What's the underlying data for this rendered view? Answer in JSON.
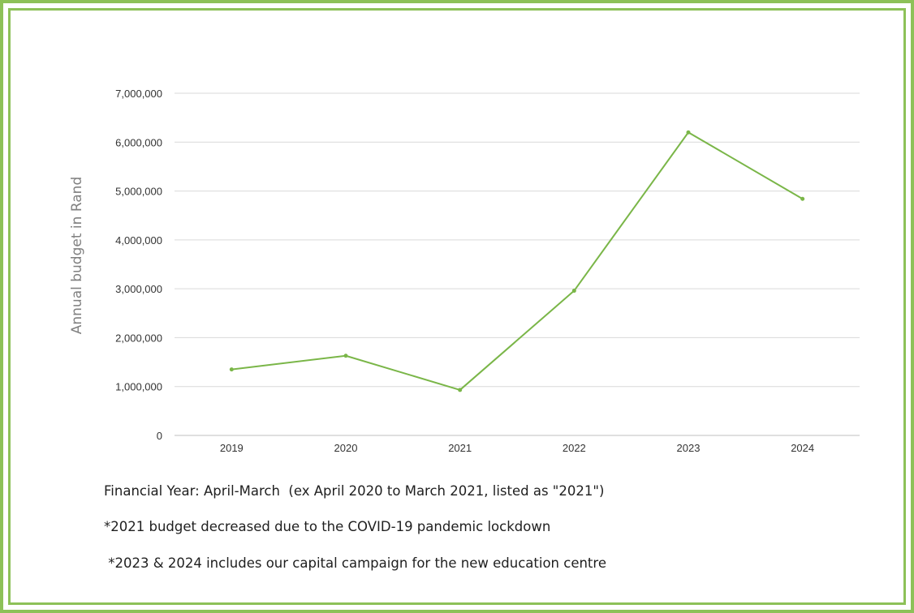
{
  "colors": {
    "frame": "#8dc158",
    "line": "#7ab648",
    "grid": "#d9d9d9",
    "axis": "#bfbfbf"
  },
  "chart_data": {
    "type": "line",
    "title": "",
    "xlabel": "",
    "ylabel": "Annual budget in Rand",
    "categories": [
      "2019",
      "2020",
      "2021",
      "2022",
      "2023",
      "2024"
    ],
    "series": [
      {
        "values": [
          1350000,
          1630000,
          930000,
          2960000,
          6200000,
          4840000
        ]
      }
    ],
    "ylim": [
      0,
      7000000
    ],
    "yticks": [
      0,
      1000000,
      2000000,
      3000000,
      4000000,
      5000000,
      6000000,
      7000000
    ],
    "ytick_labels": [
      "0",
      "1,000,000",
      "2,000,000",
      "3,000,000",
      "4,000,000",
      "5,000,000",
      "6,000,000",
      "7,000,000"
    ],
    "grid": true,
    "legend": "none"
  },
  "notes": {
    "financial_year": "Financial Year: April-March  (ex April 2020 to March 2021, listed as \"2021\")",
    "note_2021": "*2021 budget decreased due to the COVID-19 pandemic lockdown",
    "note_2023_2024": " *2023 & 2024 includes our capital campaign for the new education centre"
  }
}
